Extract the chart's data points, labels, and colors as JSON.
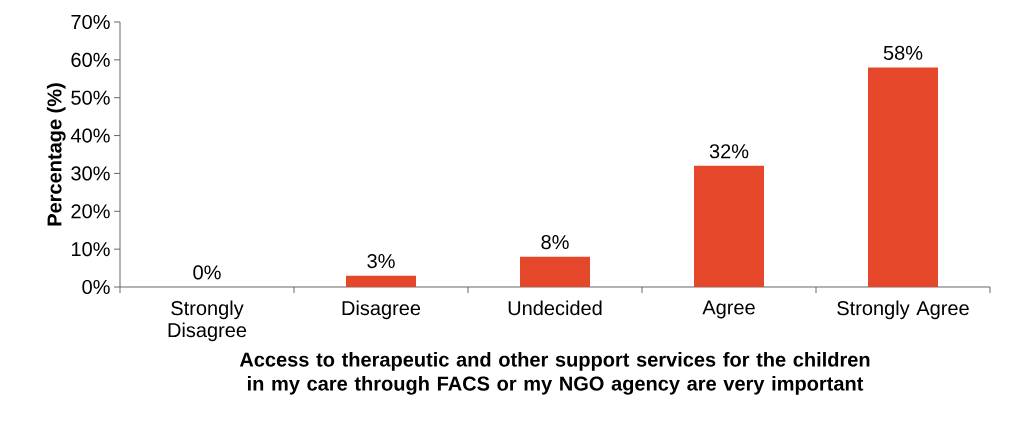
{
  "chart_data": {
    "type": "bar",
    "xlabel": "Access to therapeutic and other support services for the children in my care through FACS or my NGO agency are very important",
    "ylabel": "Percentage (%)",
    "categories": [
      "Strongly Disagree",
      "Disagree",
      "Undecided",
      "Agree",
      "Strongly Agree"
    ],
    "values": [
      0,
      3,
      8,
      32,
      58
    ],
    "color": "#e5472a",
    "value_labels": [
      "0%",
      "3%",
      "8%",
      "32%",
      "58%"
    ],
    "ylim": [
      0,
      70
    ],
    "yticks": [
      {
        "value": 0,
        "label": "0%"
      },
      {
        "value": 10,
        "label": "10%"
      },
      {
        "value": 20,
        "label": "20%"
      },
      {
        "value": 30,
        "label": "30%"
      },
      {
        "value": 40,
        "label": "40%"
      },
      {
        "value": 50,
        "label": "50%"
      },
      {
        "value": 60,
        "label": "60%"
      },
      {
        "value": 70,
        "label": "70%"
      }
    ],
    "grid": false
  }
}
